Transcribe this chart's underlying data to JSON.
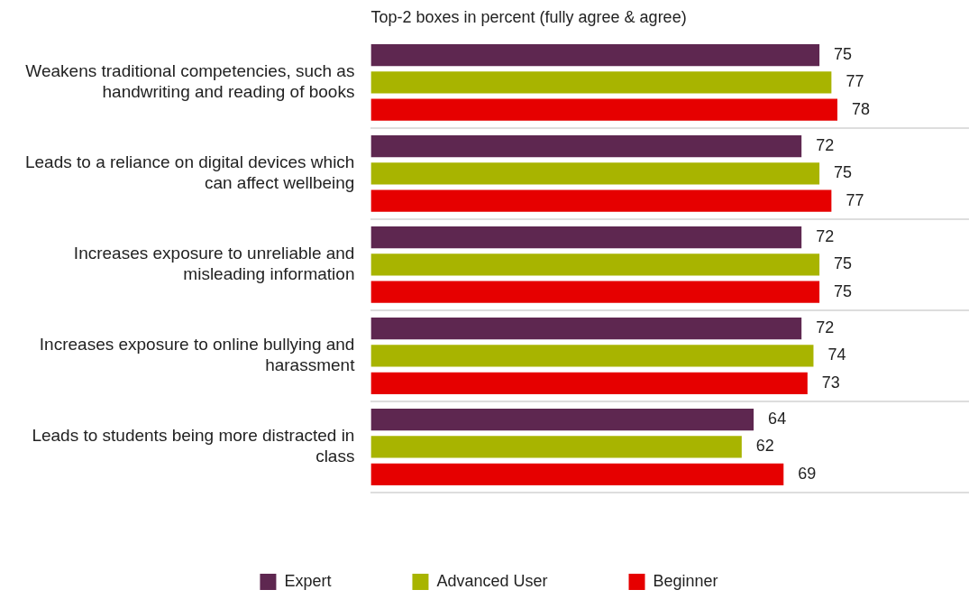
{
  "chart_data": {
    "type": "bar",
    "orientation": "horizontal",
    "title": "Top-2 boxes in percent (fully agree & agree)",
    "categories": [
      "Weakens traditional competencies, such as handwriting and reading of books",
      "Leads to a reliance on digital devices which can affect wellbeing",
      "Increases exposure to unreliable and misleading information",
      "Increases exposure to online bullying and harassment",
      "Leads to students being more distracted in class"
    ],
    "series": [
      {
        "name": "Expert",
        "color": "#5e2750",
        "values": [
          75,
          72,
          72,
          72,
          64
        ]
      },
      {
        "name": "Advanced User",
        "color": "#a8b400",
        "values": [
          77,
          75,
          75,
          74,
          62
        ]
      },
      {
        "name": "Beginner",
        "color": "#e60000",
        "values": [
          78,
          77,
          75,
          73,
          69
        ]
      }
    ],
    "xlim": [
      0,
      100
    ],
    "tick_labels": "y",
    "data_labels": true,
    "grid": "y",
    "legend": "bottom"
  }
}
